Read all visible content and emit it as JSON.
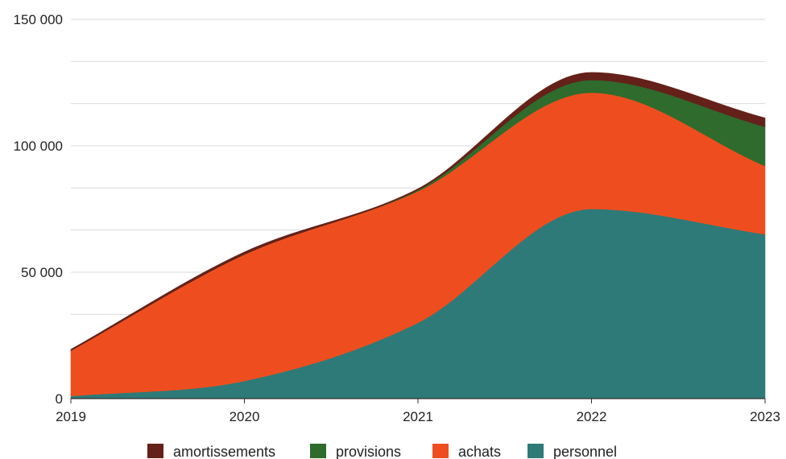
{
  "chart_data": {
    "type": "area",
    "stacked": true,
    "title": "",
    "xlabel": "",
    "ylabel": "",
    "x": [
      2019,
      2020,
      2021,
      2022,
      2023
    ],
    "x_tick_labels": [
      "2019",
      "2020",
      "2021",
      "2022",
      "2023"
    ],
    "ylim": [
      0,
      150000
    ],
    "y_ticks": [
      0,
      50000,
      100000,
      150000
    ],
    "y_tick_labels": [
      "0",
      "50 000",
      "100 000",
      "150 000"
    ],
    "grid": true,
    "legend_position": "bottom",
    "series": [
      {
        "name": "personnel",
        "color": "#2e7a78",
        "values": [
          1000,
          7000,
          30000,
          75000,
          65000
        ]
      },
      {
        "name": "achats",
        "color": "#ee4e1f",
        "values": [
          18000,
          50000,
          52000,
          46000,
          27000
        ]
      },
      {
        "name": "provisions",
        "color": "#2f6b2d",
        "values": [
          0,
          0,
          500,
          5000,
          15500
        ]
      },
      {
        "name": "amortissements",
        "color": "#642119",
        "values": [
          500,
          1000,
          500,
          3000,
          3500
        ]
      }
    ],
    "legend_order": [
      "amortissements",
      "provisions",
      "achats",
      "personnel"
    ]
  }
}
